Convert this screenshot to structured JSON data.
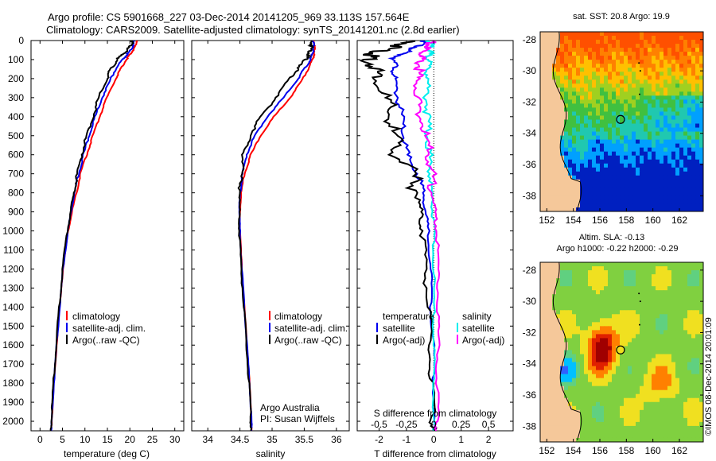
{
  "header": {
    "line1": "Argo profile: CS 5901668_227 03-Dec-2014 20141205_969 33.113S 157.564E",
    "line2": "Climatology: CARS2009. Satellite-adjusted climatology: synTS_20141201.nc (2.8d earlier)"
  },
  "colors": {
    "climatology": "#ff0000",
    "satellite": "#0000ee",
    "argo": "#000000",
    "s_satellite": "#00eeee",
    "s_argo": "#ff00ff",
    "land": "#f5c89a"
  },
  "depth_axis": {
    "ticks": [
      "0",
      "100",
      "200",
      "300",
      "400",
      "500",
      "600",
      "700",
      "800",
      "900",
      "1000",
      "1100",
      "1200",
      "1300",
      "1400",
      "1500",
      "1600",
      "1700",
      "1800",
      "1900",
      "2000"
    ],
    "ylim": [
      0,
      2050
    ]
  },
  "credits": {
    "argo_australia": "Argo Australia",
    "pi": "PI: Susan Wijffels",
    "imos": "©IMOS 08-Dec-2014 20:01:09"
  },
  "chart_data": [
    {
      "type": "line",
      "name": "temperature",
      "xlabel": "temperature (deg C)",
      "xlim": [
        -2,
        32
      ],
      "xticks": [
        0,
        5,
        10,
        15,
        20,
        25,
        30
      ],
      "xtick_labels": [
        "0",
        "5",
        "10",
        "15",
        "20",
        "25",
        "30"
      ],
      "legend": [
        "climatology",
        "satellite-adj. clim.",
        "Argo(..raw -QC)"
      ],
      "depth": [
        0,
        25,
        50,
        75,
        100,
        150,
        200,
        300,
        400,
        500,
        600,
        700,
        800,
        900,
        1000,
        1200,
        1400,
        1600,
        1800,
        2000,
        2050
      ],
      "series": [
        {
          "name": "climatology",
          "color": "red",
          "values": [
            21.5,
            21.3,
            20.7,
            20.0,
            19.2,
            17.9,
            16.9,
            14.9,
            13.3,
            11.8,
            10.4,
            9.0,
            8.1,
            7.1,
            6.3,
            5.1,
            4.4,
            3.7,
            3.1,
            2.6,
            2.5
          ]
        },
        {
          "name": "satellite-adj. clim.",
          "color": "blue",
          "values": [
            21.0,
            20.8,
            20.2,
            19.3,
            18.4,
            16.8,
            15.8,
            13.8,
            12.3,
            10.9,
            9.7,
            8.6,
            7.7,
            6.9,
            6.2,
            5.1,
            4.4,
            3.7,
            3.1,
            2.6,
            2.5
          ]
        },
        {
          "name": "Argo(..raw -QC)",
          "color": "black",
          "values": [
            20.6,
            20.2,
            19.4,
            18.3,
            17.2,
            15.8,
            14.8,
            13.1,
            11.7,
            10.4,
            9.2,
            8.3,
            7.5,
            6.8,
            6.1,
            5.0,
            4.3,
            3.6,
            3.0,
            2.5,
            2.4
          ]
        }
      ]
    },
    {
      "type": "line",
      "name": "salinity",
      "xlabel": "salinity",
      "xlim": [
        33.75,
        36.2
      ],
      "xticks": [
        34,
        34.5,
        35,
        35.5,
        36
      ],
      "xtick_labels": [
        "34",
        "34.5",
        "35",
        "35.5",
        "36"
      ],
      "legend": [
        "climatology",
        "satellite-adj. clim.",
        "Argo(..raw -QC)"
      ],
      "depth": [
        0,
        25,
        50,
        75,
        100,
        150,
        200,
        300,
        400,
        500,
        600,
        700,
        800,
        900,
        1000,
        1200,
        1400,
        1600,
        1800,
        2000,
        2050
      ],
      "series": [
        {
          "name": "climatology",
          "color": "red",
          "values": [
            35.65,
            35.66,
            35.66,
            35.65,
            35.63,
            35.56,
            35.48,
            35.28,
            35.03,
            34.82,
            34.67,
            34.57,
            34.52,
            34.5,
            34.5,
            34.53,
            34.57,
            34.61,
            34.65,
            34.68,
            34.68
          ]
        },
        {
          "name": "satellite-adj. clim.",
          "color": "blue",
          "values": [
            35.63,
            35.65,
            35.64,
            35.62,
            35.6,
            35.5,
            35.4,
            35.18,
            34.92,
            34.73,
            34.6,
            34.54,
            34.5,
            34.49,
            34.5,
            34.53,
            34.57,
            34.61,
            34.65,
            34.68,
            34.68
          ]
        },
        {
          "name": "Argo(..raw -QC)",
          "color": "black",
          "values": [
            35.6,
            35.62,
            35.6,
            35.57,
            35.52,
            35.4,
            35.28,
            35.05,
            34.82,
            34.65,
            34.56,
            34.52,
            34.5,
            34.49,
            34.49,
            34.52,
            34.56,
            34.6,
            34.64,
            34.67,
            34.67
          ]
        }
      ]
    },
    {
      "type": "line",
      "name": "difference",
      "xlabel": "T difference from climatology",
      "xlabel_top": "S difference from climatology",
      "xlim": [
        -2.8,
        2.9
      ],
      "xticks": [
        -2,
        -1,
        0,
        1,
        2
      ],
      "xtick_labels": [
        "-2",
        "-1",
        "0",
        "1",
        "2"
      ],
      "xticks_top": [
        -0.5,
        -0.25,
        0,
        0.25,
        0.5
      ],
      "xtick_labels_top": [
        "-0.5",
        "-0.25",
        "0",
        "0.25",
        "0.5"
      ],
      "legend_headers": [
        "temperature",
        "salinity"
      ],
      "legend": [
        "satellite",
        "Argo(-adj)",
        "satellite",
        "Argo(-adj)"
      ],
      "depth": [
        0,
        25,
        50,
        75,
        100,
        150,
        200,
        300,
        400,
        500,
        600,
        700,
        800,
        900,
        1000,
        1200,
        1400,
        1600,
        1800,
        2000,
        2050
      ],
      "series": [
        {
          "name": "T satellite",
          "color": "blue",
          "values": [
            -0.3,
            -0.5,
            -0.9,
            -1.2,
            -1.5,
            -1.4,
            -1.5,
            -1.3,
            -1.2,
            -1.1,
            -1.0,
            -0.6,
            -0.4,
            -0.3,
            -0.2,
            -0.1,
            -0.1,
            0,
            0,
            0,
            0
          ]
        },
        {
          "name": "T Argo(-adj)",
          "color": "black",
          "values": [
            -0.8,
            -1.2,
            -1.8,
            -2.3,
            -2.4,
            -2.1,
            -2.0,
            -1.8,
            -1.6,
            -1.5,
            -1.3,
            -0.8,
            -0.6,
            -0.5,
            -0.4,
            -0.3,
            -0.2,
            -0.15,
            -0.1,
            -0.05,
            0
          ]
        },
        {
          "name": "S satellite",
          "color": "cyan",
          "values": [
            -0.05,
            -0.02,
            -0.03,
            -0.05,
            -0.05,
            -0.05,
            -0.06,
            -0.06,
            -0.06,
            -0.05,
            -0.04,
            -0.03,
            -0.02,
            -0.01,
            0,
            0,
            0,
            0,
            0,
            0,
            0
          ]
        },
        {
          "name": "S Argo(-adj)",
          "color": "magenta",
          "values": [
            0,
            -0.05,
            -0.09,
            -0.12,
            -0.13,
            -0.13,
            -0.15,
            -0.15,
            -0.12,
            -0.08,
            -0.04,
            -0.02,
            -0.01,
            0.01,
            0.03,
            0.04,
            0.04,
            0.04,
            0.03,
            0.03,
            0.02
          ]
        }
      ]
    },
    {
      "type": "heatmap",
      "name": "sst_map",
      "title": "sat. SST: 20.8 Argo: 19.9",
      "xlim": [
        151.5,
        163.8
      ],
      "ylim": [
        -39,
        -27.5
      ],
      "xticks": [
        152,
        154,
        156,
        158,
        160,
        162
      ],
      "xtick_labels": [
        "152",
        "154",
        "156",
        "158",
        "160",
        "162"
      ],
      "yticks": [
        -28,
        -30,
        -32,
        -34,
        -36,
        -38
      ],
      "ytick_labels": [
        "-28",
        "-30",
        "-32",
        "-34",
        "-36",
        "-38"
      ],
      "marker": {
        "lon": 157.56,
        "lat": -33.11
      }
    },
    {
      "type": "heatmap",
      "name": "sla_map",
      "title": "Altim. SLA: -0.13",
      "title2": "Argo h1000: -0.22 h2000: -0.29",
      "xlim": [
        151.5,
        163.8
      ],
      "ylim": [
        -39,
        -27.5
      ],
      "xticks": [
        152,
        154,
        156,
        158,
        160,
        162
      ],
      "xtick_labels": [
        "152",
        "154",
        "156",
        "158",
        "160",
        "162"
      ],
      "yticks": [
        -28,
        -30,
        -32,
        -34,
        -36,
        -38
      ],
      "ytick_labels": [
        "-28",
        "-30",
        "-32",
        "-34",
        "-36",
        "-38"
      ],
      "marker": {
        "lon": 157.56,
        "lat": -33.11
      }
    }
  ]
}
